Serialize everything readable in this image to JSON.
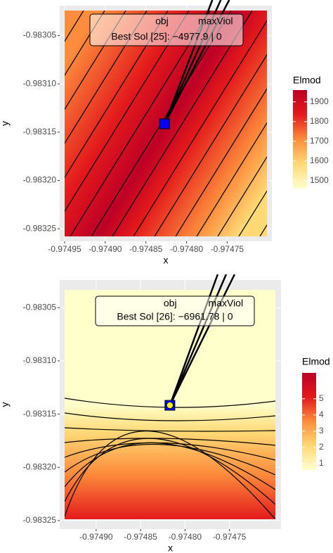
{
  "chart_data": [
    {
      "type": "contour",
      "xlabel": "x",
      "ylabel": "y",
      "xlim": [
        -0.974956,
        -0.974695
      ],
      "ylim": [
        -0.983263,
        -0.983019
      ],
      "xticks": [
        -0.97495,
        {
          "value": -0.9749,
          "label": "-0.97490"
        },
        -0.97485,
        {
          "value": -0.9748,
          "label": "-0.97480"
        },
        -0.97475
      ],
      "yticks": [
        -0.98305,
        {
          "value": -0.9831,
          "label": "-0.98310"
        },
        -0.98315,
        {
          "value": -0.9832,
          "label": "-0.98320"
        },
        -0.98325
      ],
      "grid": true,
      "legend": {
        "title": "Elmod",
        "lim": [
          1460,
          1960
        ],
        "ticks": [
          1500,
          1600,
          1700,
          1800,
          1900
        ],
        "colors": [
          "#FFFFCC",
          "#FED976",
          "#FD8D3C",
          "#E31A1C",
          "#BD0026"
        ]
      },
      "best": {
        "x": -0.974827,
        "y": -0.9831414,
        "color": "#0000FF"
      },
      "annotation": {
        "header": [
          "obj",
          "maxViol"
        ],
        "text": "Best Sol [25]: −4977.9 | 0"
      }
    },
    {
      "type": "contour",
      "xlabel": "x",
      "ylabel": "y",
      "xlim": [
        -0.974941,
        -0.974692
      ],
      "ylim": [
        -0.983258,
        -0.983024
      ],
      "xticks": [
        {
          "value": -0.9749,
          "label": "-0.97490"
        },
        -0.97485,
        {
          "value": -0.9748,
          "label": "-0.97480"
        },
        -0.97475
      ],
      "yticks": [
        -0.98305,
        {
          "value": -0.9831,
          "label": "-0.98310"
        },
        -0.98315,
        {
          "value": -0.9832,
          "label": "-0.98320"
        },
        -0.98325
      ],
      "grid": true,
      "legend": {
        "title": "Elmod",
        "lim": [
          0.6,
          6.6
        ],
        "ticks": [
          1,
          2,
          3,
          4,
          5
        ],
        "colors": [
          "#FFFFCC",
          "#FED976",
          "#FD8D3C",
          "#E31A1C",
          "#BD0026"
        ]
      },
      "best": {
        "x": -0.974817,
        "y": -0.9831417,
        "color": "#0000FF",
        "dot": "#FFFF00"
      },
      "annotation": {
        "header": [
          "obj",
          "maxViol"
        ],
        "text": "Best Sol [26]: −6961.78 | 0"
      }
    }
  ]
}
